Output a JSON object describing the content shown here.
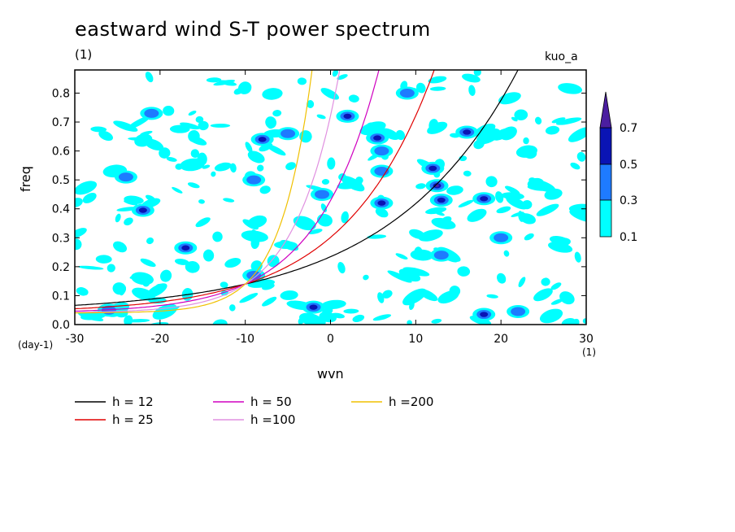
{
  "chart_data": {
    "type": "contour",
    "title": "eastward wind S-T power spectrum",
    "subtitle": "(1)",
    "experiment": "kuo_a",
    "xlabel": "wvn",
    "ylabel": "freq",
    "x_unit": "(1)",
    "y_unit": "(day-1)",
    "xlim": [
      -30,
      30
    ],
    "ylim": [
      0,
      0.88
    ],
    "x_ticks": [
      -30,
      -20,
      -10,
      0,
      10,
      20,
      30
    ],
    "x_tick_labels": [
      "-30",
      "-20",
      "-10",
      "0",
      "10",
      "20",
      "30"
    ],
    "y_ticks": [
      0,
      0.1,
      0.2,
      0.3,
      0.4,
      0.5,
      0.6,
      0.7,
      0.8
    ],
    "y_tick_labels": [
      "0.0",
      "0.1",
      "0.2",
      "0.3",
      "0.4",
      "0.5",
      "0.6",
      "0.7",
      "0.8"
    ],
    "colorbar": {
      "levels": [
        0.1,
        0.3,
        0.5,
        0.7
      ],
      "labels": [
        "0.1",
        "0.3",
        "0.5",
        "0.7"
      ],
      "colors": [
        "#00ffff",
        "#1e7bff",
        "#0a14b4",
        "#4b1ea0"
      ]
    },
    "dispersion_curves": [
      {
        "name": "h = 12",
        "h": 12,
        "color": "#000000"
      },
      {
        "name": "h = 25",
        "h": 25,
        "color": "#e00000"
      },
      {
        "name": "h = 50",
        "h": 50,
        "color": "#d000c0"
      },
      {
        "name": "h =100",
        "h": 100,
        "color": "#e090e0"
      },
      {
        "name": "h =200",
        "h": 200,
        "color": "#f0c000"
      }
    ],
    "contour_regions": [
      {
        "x": -22,
        "y": 0.395,
        "level": 0.5
      },
      {
        "x": -17,
        "y": 0.265,
        "level": 0.5
      },
      {
        "x": -21,
        "y": 0.73,
        "level": 0.3
      },
      {
        "x": -24,
        "y": 0.51,
        "level": 0.3
      },
      {
        "x": -8,
        "y": 0.64,
        "level": 0.5
      },
      {
        "x": -5,
        "y": 0.66,
        "level": 0.3
      },
      {
        "x": -2,
        "y": 0.06,
        "level": 0.5
      },
      {
        "x": 2,
        "y": 0.72,
        "level": 0.5
      },
      {
        "x": 5.5,
        "y": 0.645,
        "level": 0.5
      },
      {
        "x": 6,
        "y": 0.6,
        "level": 0.3
      },
      {
        "x": 6,
        "y": 0.53,
        "level": 0.3
      },
      {
        "x": 12.5,
        "y": 0.48,
        "level": 0.7
      },
      {
        "x": 13,
        "y": 0.43,
        "level": 0.5
      },
      {
        "x": 12,
        "y": 0.54,
        "level": 0.5
      },
      {
        "x": 16,
        "y": 0.665,
        "level": 0.5
      },
      {
        "x": 18,
        "y": 0.435,
        "level": 0.5
      },
      {
        "x": 18,
        "y": 0.035,
        "level": 0.5
      },
      {
        "x": 22,
        "y": 0.045,
        "level": 0.3
      },
      {
        "x": 6,
        "y": 0.42,
        "level": 0.5
      },
      {
        "x": -9,
        "y": 0.17,
        "level": 0.3
      },
      {
        "x": -9,
        "y": 0.5,
        "level": 0.3
      },
      {
        "x": -1,
        "y": 0.45,
        "level": 0.3
      },
      {
        "x": 13,
        "y": 0.24,
        "level": 0.3
      },
      {
        "x": 9,
        "y": 0.8,
        "level": 0.3
      },
      {
        "x": 20,
        "y": 0.3,
        "level": 0.3
      },
      {
        "x": -26,
        "y": 0.05,
        "level": 0.3
      }
    ]
  }
}
